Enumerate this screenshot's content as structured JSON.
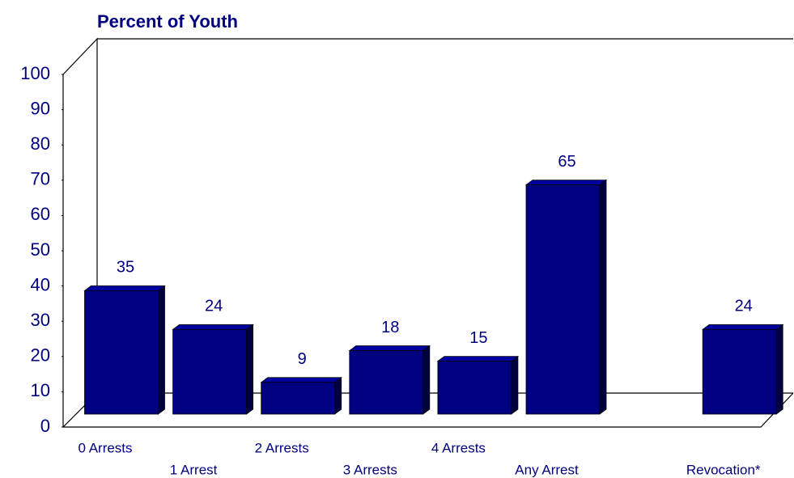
{
  "chart_data": {
    "type": "bar3d",
    "title": "Percent of Youth",
    "categories": [
      "0 Arrests",
      "1 Arrest",
      "2 Arrests",
      "3 Arrests",
      "4 Arrests",
      "Any Arrest",
      null,
      "Revocation*"
    ],
    "values": [
      35,
      24,
      9,
      18,
      15,
      65,
      null,
      24
    ],
    "color": "#000080",
    "ylim": [
      0,
      100
    ],
    "yticks": [
      0,
      10,
      20,
      30,
      40,
      50,
      60,
      70,
      80,
      90,
      100
    ]
  }
}
